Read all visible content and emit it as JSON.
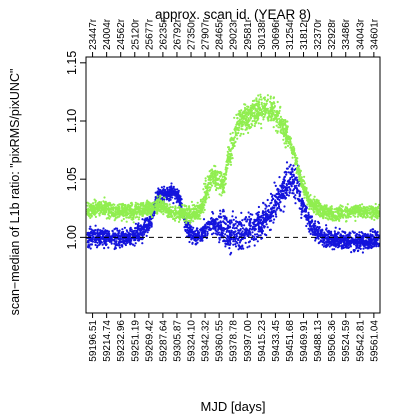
{
  "chart_data": {
    "type": "scatter",
    "title": "approx. scan id. (YEAR 8)",
    "xlabel": "MJD [days]",
    "ylabel": "scan−median of L1b ratio: \"pixRMS/pixUNC\"",
    "xlim": [
      59188.0,
      59569.0
    ],
    "ylim": [
      0.935,
      1.155
    ],
    "y_ticks": [
      1.0,
      1.05,
      1.1,
      1.15
    ],
    "y_tick_labels": [
      "1.00",
      "1.05",
      "1.10",
      "1.15"
    ],
    "x_ticks_bottom": [
      59196.51,
      59214.74,
      59232.96,
      59251.19,
      59269.42,
      59287.64,
      59305.87,
      59324.1,
      59342.32,
      59360.55,
      59378.78,
      59397.0,
      59415.23,
      59433.45,
      59451.68,
      59469.91,
      59488.13,
      59506.36,
      59524.59,
      59542.81,
      59561.04
    ],
    "x_tick_labels_bottom": [
      "59196.51",
      "59214.74",
      "59232.96",
      "59251.19",
      "59269.42",
      "59287.64",
      "59305.87",
      "59324.10",
      "59342.32",
      "59360.55",
      "59378.78",
      "59397.00",
      "59415.23",
      "59433.45",
      "59451.68",
      "59469.91",
      "59488.13",
      "59506.36",
      "59524.59",
      "59542.81",
      "59561.04"
    ],
    "x_tick_labels_top": [
      "23447r",
      "24004r",
      "24562r",
      "25120r",
      "25677r",
      "26235r",
      "26792r",
      "27350r",
      "27907r",
      "28465r",
      "29023r",
      "29581r",
      "30138r",
      "30696r",
      "31254r",
      "31812r",
      "32370r",
      "32928r",
      "33486r",
      "34043r",
      "34601r"
    ],
    "reference_line": {
      "y": 1.0,
      "style": "dashed"
    },
    "grid": false,
    "legend": "none",
    "series": [
      {
        "color": "#90ee50",
        "trend": [
          [
            59190,
            1.024
          ],
          [
            59210,
            1.025
          ],
          [
            59230,
            1.022
          ],
          [
            59250,
            1.022
          ],
          [
            59270,
            1.025
          ],
          [
            59285,
            1.028
          ],
          [
            59300,
            1.021
          ],
          [
            59320,
            1.02
          ],
          [
            59335,
            1.022
          ],
          [
            59345,
            1.04
          ],
          [
            59352,
            1.056
          ],
          [
            59358,
            1.05
          ],
          [
            59366,
            1.046
          ],
          [
            59374,
            1.072
          ],
          [
            59385,
            1.098
          ],
          [
            59400,
            1.106
          ],
          [
            59415,
            1.11
          ],
          [
            59430,
            1.108
          ],
          [
            59442,
            1.098
          ],
          [
            59452,
            1.084
          ],
          [
            59460,
            1.065
          ],
          [
            59468,
            1.046
          ],
          [
            59478,
            1.031
          ],
          [
            59492,
            1.023
          ],
          [
            59510,
            1.02
          ],
          [
            59530,
            1.022
          ],
          [
            59550,
            1.022
          ],
          [
            59568,
            1.021
          ]
        ]
      },
      {
        "color": "#1414dc",
        "trend": [
          [
            59190,
            1.0
          ],
          [
            59210,
            1.0
          ],
          [
            59230,
            0.999
          ],
          [
            59250,
            1.0
          ],
          [
            59270,
            1.01
          ],
          [
            59280,
            1.035
          ],
          [
            59295,
            1.038
          ],
          [
            59308,
            1.036
          ],
          [
            59318,
            1.01
          ],
          [
            59330,
            1.0
          ],
          [
            59342,
            1.006
          ],
          [
            59352,
            1.012
          ],
          [
            59362,
            1.008
          ],
          [
            59375,
            1.002
          ],
          [
            59392,
            1.004
          ],
          [
            59410,
            1.01
          ],
          [
            59425,
            1.02
          ],
          [
            59438,
            1.034
          ],
          [
            59448,
            1.044
          ],
          [
            59456,
            1.05
          ],
          [
            59464,
            1.04
          ],
          [
            59472,
            1.022
          ],
          [
            59482,
            1.008
          ],
          [
            59495,
            1.0
          ],
          [
            59515,
            0.998
          ],
          [
            59540,
            0.997
          ],
          [
            59568,
            0.998
          ]
        ]
      }
    ]
  }
}
